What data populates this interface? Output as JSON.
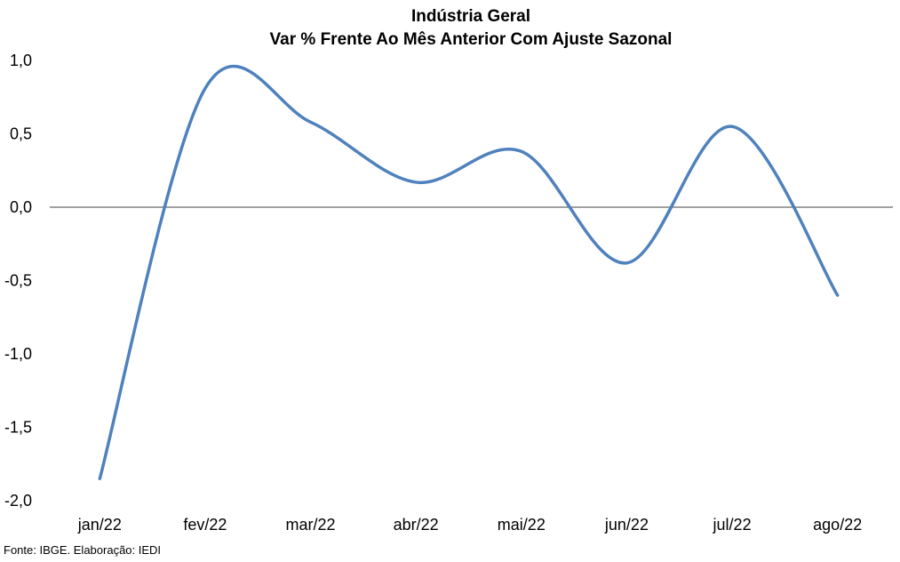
{
  "chart_data": {
    "type": "line",
    "title": "Indústria Geral",
    "subtitle": "Var % Frente Ao Mês Anterior Com Ajuste Sazonal",
    "categories": [
      "jan/22",
      "fev/22",
      "mar/22",
      "abr/22",
      "mai/22",
      "jun/22",
      "jul/22",
      "ago/22"
    ],
    "series": [
      {
        "values": [
          -1.85,
          0.81,
          0.58,
          0.17,
          0.38,
          -0.38,
          0.55,
          -0.6
        ],
        "color": "#4F81BD"
      }
    ],
    "ylim": [
      -2.0,
      1.0
    ],
    "yticks": [
      1.0,
      0.5,
      0.0,
      -0.5,
      -1.0,
      -1.5,
      -2.0
    ],
    "ytick_labels": [
      "1,0",
      "0,5",
      "0,0",
      "-0,5",
      "-1,0",
      "-1,5",
      "-2,0"
    ],
    "xlabel": "",
    "ylabel": "",
    "grid": false,
    "legend": "none",
    "zero_line": true
  },
  "footer": {
    "source": "Fonte: IBGE. Elaboração: IEDI"
  }
}
